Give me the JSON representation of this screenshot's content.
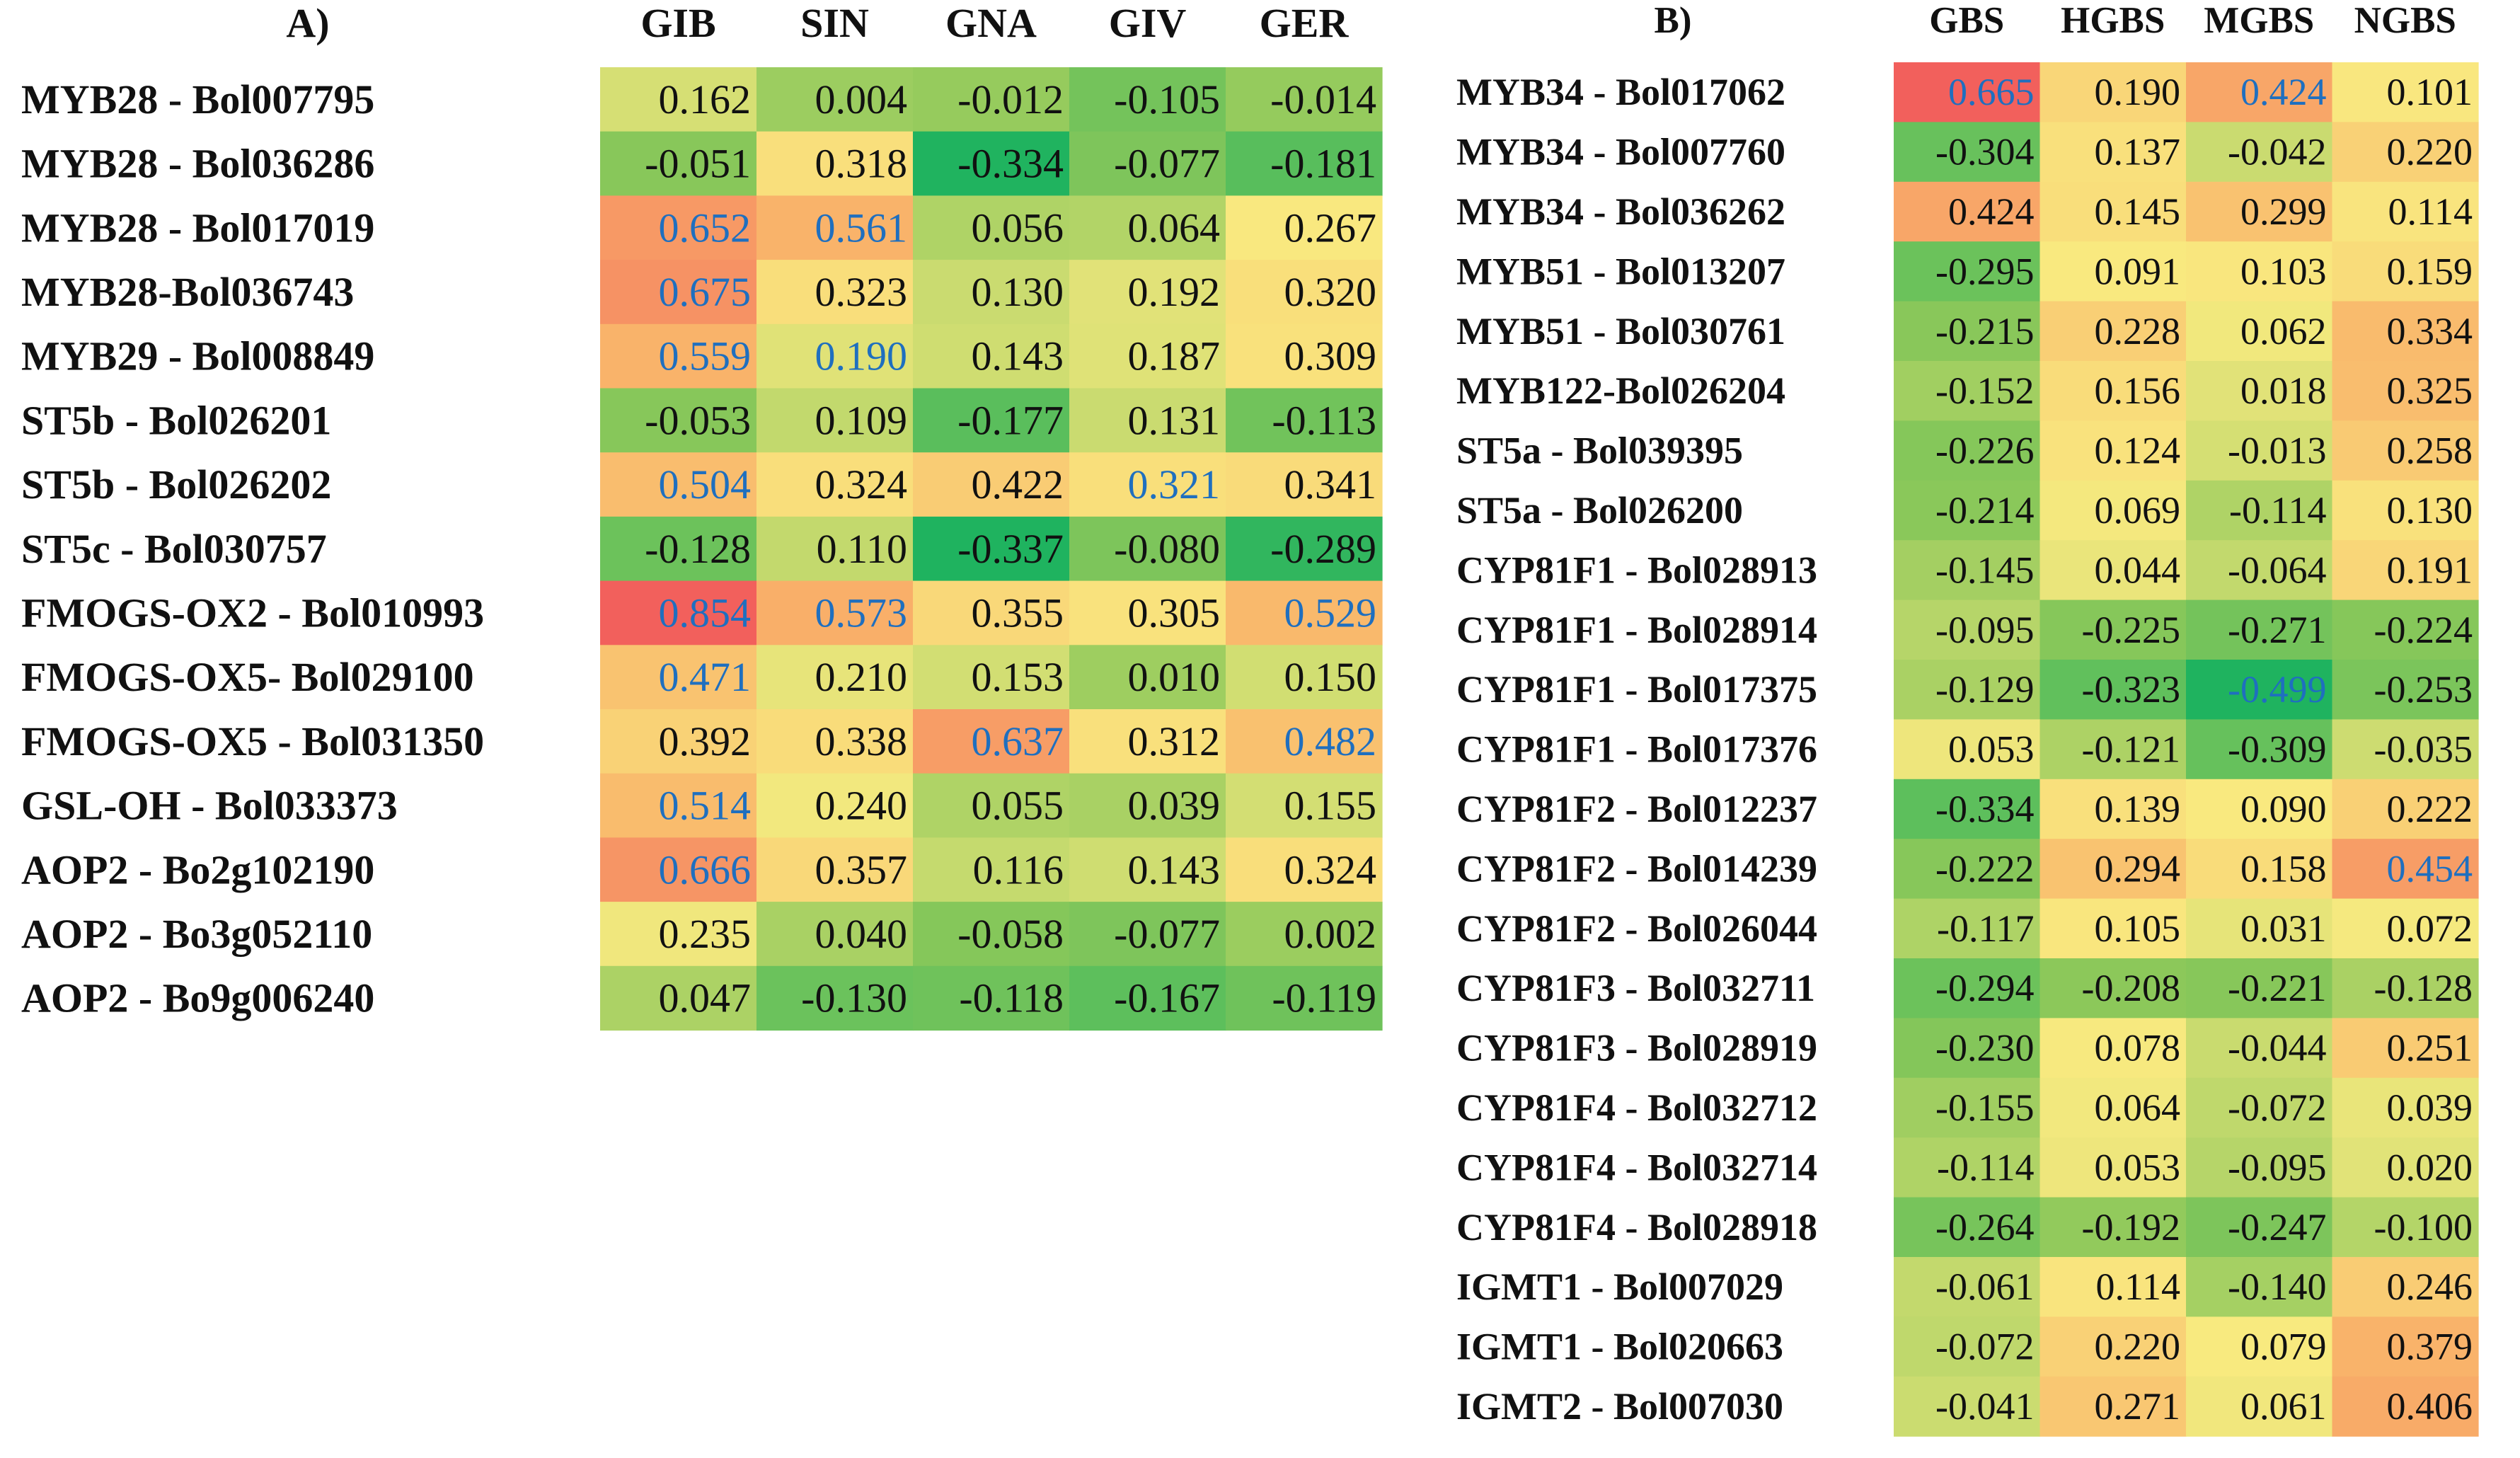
{
  "chart_data": [
    {
      "type": "heatmap",
      "panel_label": "A)",
      "columns": [
        "GIB",
        "SIN",
        "GNA",
        "GIV",
        "GER"
      ],
      "rows": [
        {
          "label": "MYB28 - Bol007795",
          "values": [
            "0.162",
            "0.004",
            "-0.012",
            "-0.105",
            "-0.014"
          ],
          "significant": [
            false,
            false,
            false,
            false,
            false
          ]
        },
        {
          "label": "MYB28 - Bol036286",
          "values": [
            "-0.051",
            "0.318",
            "-0.334",
            "-0.077",
            "-0.181"
          ],
          "significant": [
            false,
            false,
            false,
            false,
            false
          ]
        },
        {
          "label": "MYB28 - Bol017019",
          "values": [
            "0.652",
            "0.561",
            "0.056",
            "0.064",
            "0.267"
          ],
          "significant": [
            true,
            true,
            false,
            false,
            false
          ]
        },
        {
          "label": "MYB28-Bol036743",
          "values": [
            "0.675",
            "0.323",
            "0.130",
            "0.192",
            "0.320"
          ],
          "significant": [
            true,
            false,
            false,
            false,
            false
          ]
        },
        {
          "label": "MYB29 - Bol008849",
          "values": [
            "0.559",
            "0.190",
            "0.143",
            "0.187",
            "0.309"
          ],
          "significant": [
            true,
            true,
            false,
            false,
            false
          ]
        },
        {
          "label": "ST5b - Bol026201",
          "values": [
            "-0.053",
            "0.109",
            "-0.177",
            "0.131",
            "-0.113"
          ],
          "significant": [
            false,
            false,
            false,
            false,
            false
          ]
        },
        {
          "label": "ST5b - Bol026202",
          "values": [
            "0.504",
            "0.324",
            "0.422",
            "0.321",
            "0.341"
          ],
          "significant": [
            true,
            false,
            false,
            true,
            false
          ]
        },
        {
          "label": "ST5c - Bol030757",
          "values": [
            "-0.128",
            "0.110",
            "-0.337",
            "-0.080",
            "-0.289"
          ],
          "significant": [
            false,
            false,
            false,
            false,
            false
          ]
        },
        {
          "label": "FMOGS-OX2 - Bol010993",
          "values": [
            "0.854",
            "0.573",
            "0.355",
            "0.305",
            "0.529"
          ],
          "significant": [
            true,
            true,
            false,
            false,
            true
          ]
        },
        {
          "label": "FMOGS-OX5- Bol029100",
          "values": [
            "0.471",
            "0.210",
            "0.153",
            "0.010",
            "0.150"
          ],
          "significant": [
            true,
            false,
            false,
            false,
            false
          ]
        },
        {
          "label": "FMOGS-OX5 - Bol031350",
          "values": [
            "0.392",
            "0.338",
            "0.637",
            "0.312",
            "0.482"
          ],
          "significant": [
            false,
            false,
            true,
            false,
            true
          ]
        },
        {
          "label": "GSL-OH - Bol033373",
          "values": [
            "0.514",
            "0.240",
            "0.055",
            "0.039",
            "0.155"
          ],
          "significant": [
            true,
            false,
            false,
            false,
            false
          ]
        },
        {
          "label": "AOP2 - Bo2g102190",
          "values": [
            "0.666",
            "0.357",
            "0.116",
            "0.143",
            "0.324"
          ],
          "significant": [
            true,
            false,
            false,
            false,
            false
          ]
        },
        {
          "label": "AOP2 - Bo3g052110",
          "values": [
            "0.235",
            "0.040",
            "-0.058",
            "-0.077",
            "0.002"
          ],
          "significant": [
            false,
            false,
            false,
            false,
            false
          ]
        },
        {
          "label": "AOP2 - Bo9g006240",
          "values": [
            "0.047",
            "-0.130",
            "-0.118",
            "-0.167",
            "-0.119"
          ],
          "significant": [
            false,
            false,
            false,
            false,
            false
          ]
        }
      ]
    },
    {
      "type": "heatmap",
      "panel_label": "B)",
      "columns": [
        "GBS",
        "HGBS",
        "MGBS",
        "NGBS"
      ],
      "rows": [
        {
          "label": "MYB34 - Bol017062",
          "values": [
            "0.665",
            "0.190",
            "0.424",
            "0.101"
          ],
          "significant": [
            true,
            false,
            true,
            false
          ]
        },
        {
          "label": "MYB34 - Bol007760",
          "values": [
            "-0.304",
            "0.137",
            "-0.042",
            "0.220"
          ],
          "significant": [
            false,
            false,
            false,
            false
          ]
        },
        {
          "label": "MYB34 - Bol036262",
          "values": [
            "0.424",
            "0.145",
            "0.299",
            "0.114"
          ],
          "significant": [
            false,
            false,
            false,
            false
          ]
        },
        {
          "label": "MYB51 - Bol013207",
          "values": [
            "-0.295",
            "0.091",
            "0.103",
            "0.159"
          ],
          "significant": [
            false,
            false,
            false,
            false
          ]
        },
        {
          "label": "MYB51 - Bol030761",
          "values": [
            "-0.215",
            "0.228",
            "0.062",
            "0.334"
          ],
          "significant": [
            false,
            false,
            false,
            false
          ]
        },
        {
          "label": "MYB122-Bol026204",
          "values": [
            "-0.152",
            "0.156",
            "0.018",
            "0.325"
          ],
          "significant": [
            false,
            false,
            false,
            false
          ]
        },
        {
          "label": "ST5a - Bol039395",
          "values": [
            "-0.226",
            "0.124",
            "-0.013",
            "0.258"
          ],
          "significant": [
            false,
            false,
            false,
            false
          ]
        },
        {
          "label": "ST5a - Bol026200",
          "values": [
            "-0.214",
            "0.069",
            "-0.114",
            "0.130"
          ],
          "significant": [
            false,
            false,
            false,
            false
          ]
        },
        {
          "label": "CYP81F1 - Bol028913",
          "values": [
            "-0.145",
            "0.044",
            "-0.064",
            "0.191"
          ],
          "significant": [
            false,
            false,
            false,
            false
          ]
        },
        {
          "label": "CYP81F1 - Bol028914",
          "values": [
            "-0.095",
            "-0.225",
            "-0.271",
            "-0.224"
          ],
          "significant": [
            false,
            false,
            false,
            false
          ]
        },
        {
          "label": "CYP81F1 - Bol017375",
          "values": [
            "-0.129",
            "-0.323",
            "-0.499",
            "-0.253"
          ],
          "significant": [
            false,
            false,
            true,
            false
          ]
        },
        {
          "label": "CYP81F1 - Bol017376",
          "values": [
            "0.053",
            "-0.121",
            "-0.309",
            "-0.035"
          ],
          "significant": [
            false,
            false,
            false,
            false
          ]
        },
        {
          "label": "CYP81F2 - Bol012237",
          "values": [
            "-0.334",
            "0.139",
            "0.090",
            "0.222"
          ],
          "significant": [
            false,
            false,
            false,
            false
          ]
        },
        {
          "label": "CYP81F2 - Bol014239",
          "values": [
            "-0.222",
            "0.294",
            "0.158",
            "0.454"
          ],
          "significant": [
            false,
            false,
            false,
            true
          ]
        },
        {
          "label": "CYP81F2 - Bol026044",
          "values": [
            "-0.117",
            "0.105",
            "0.031",
            "0.072"
          ],
          "significant": [
            false,
            false,
            false,
            false
          ]
        },
        {
          "label": "CYP81F3 - Bol032711",
          "values": [
            "-0.294",
            "-0.208",
            "-0.221",
            "-0.128"
          ],
          "significant": [
            false,
            false,
            false,
            false
          ]
        },
        {
          "label": "CYP81F3 - Bol028919",
          "values": [
            "-0.230",
            "0.078",
            "-0.044",
            "0.251"
          ],
          "significant": [
            false,
            false,
            false,
            false
          ]
        },
        {
          "label": "CYP81F4 - Bol032712",
          "values": [
            "-0.155",
            "0.064",
            "-0.072",
            "0.039"
          ],
          "significant": [
            false,
            false,
            false,
            false
          ]
        },
        {
          "label": "CYP81F4 - Bol032714",
          "values": [
            "-0.114",
            "0.053",
            "-0.095",
            "0.020"
          ],
          "significant": [
            false,
            false,
            false,
            false
          ]
        },
        {
          "label": "CYP81F4 - Bol028918",
          "values": [
            "-0.264",
            "-0.192",
            "-0.247",
            "-0.100"
          ],
          "significant": [
            false,
            false,
            false,
            false
          ]
        },
        {
          "label": "IGMT1 - Bol007029",
          "values": [
            "-0.061",
            "0.114",
            "-0.140",
            "0.246"
          ],
          "significant": [
            false,
            false,
            false,
            false
          ]
        },
        {
          "label": "IGMT1 - Bol020663",
          "values": [
            "-0.072",
            "0.220",
            "0.079",
            "0.379"
          ],
          "significant": [
            false,
            false,
            false,
            false
          ]
        },
        {
          "label": "IGMT2 - Bol007030",
          "values": [
            "-0.041",
            "0.271",
            "0.061",
            "0.406"
          ],
          "significant": [
            false,
            false,
            false,
            false
          ]
        }
      ]
    }
  ],
  "colors": {
    "text": "#111111",
    "significant_text": "#1f6fbf",
    "scale": [
      "#1fb35f",
      "#8cc85a",
      "#f9ea80",
      "#f9b46a",
      "#f2605c"
    ]
  }
}
